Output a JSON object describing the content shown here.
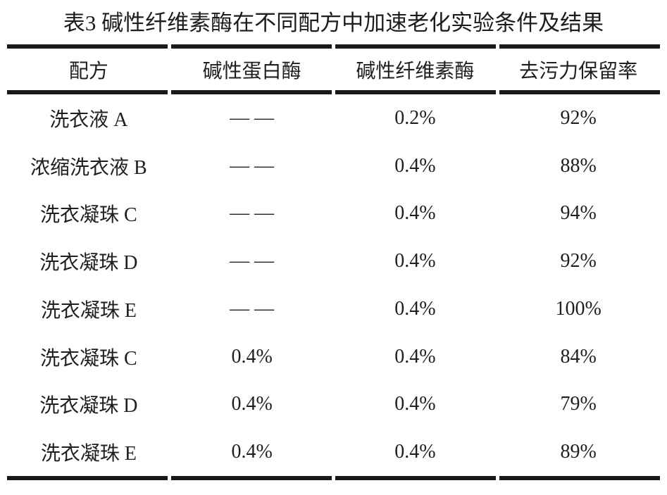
{
  "title": "表3 碱性纤维素酶在不同配方中加速老化实验条件及结果",
  "colors": {
    "background": "#ffffff",
    "text": "#1f1f1f",
    "rule": "#191919"
  },
  "table": {
    "columns": {
      "formula": "配方",
      "protease": "碱性蛋白酶",
      "cellulase": "碱性纤维素酶",
      "retention": "去污力保留率"
    },
    "none_marker": "— —",
    "rows": [
      {
        "formula": "洗衣液 A",
        "protease": "— —",
        "cellulase": "0.2%",
        "retention": "92%"
      },
      {
        "formula": "浓缩洗衣液 B",
        "protease": "— —",
        "cellulase": "0.4%",
        "retention": "88%"
      },
      {
        "formula": "洗衣凝珠 C",
        "protease": "— —",
        "cellulase": "0.4%",
        "retention": "94%"
      },
      {
        "formula": "洗衣凝珠 D",
        "protease": "— —",
        "cellulase": "0.4%",
        "retention": "92%"
      },
      {
        "formula": "洗衣凝珠 E",
        "protease": "— —",
        "cellulase": "0.4%",
        "retention": "100%"
      },
      {
        "formula": "洗衣凝珠 C",
        "protease": "0.4%",
        "cellulase": "0.4%",
        "retention": "84%"
      },
      {
        "formula": "洗衣凝珠 D",
        "protease": "0.4%",
        "cellulase": "0.4%",
        "retention": "79%"
      },
      {
        "formula": "洗衣凝珠 E",
        "protease": "0.4%",
        "cellulase": "0.4%",
        "retention": "89%"
      }
    ]
  }
}
